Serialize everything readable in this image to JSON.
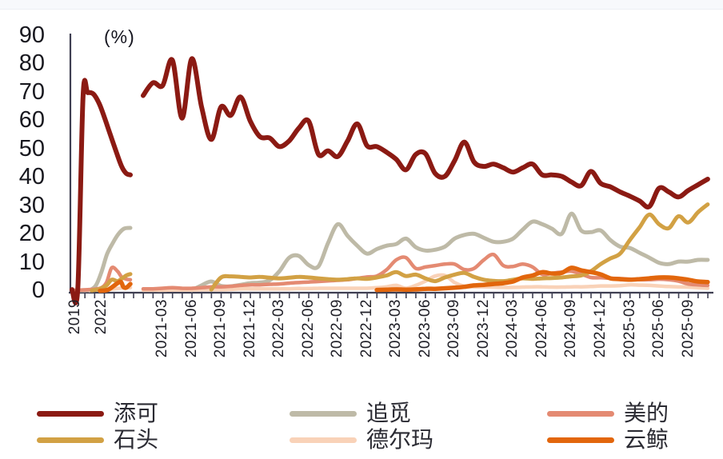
{
  "page": {
    "background": "#ffffff"
  },
  "chart_data": {
    "type": "line",
    "title": "",
    "unit_label": "(%)",
    "ylim": [
      0,
      90
    ],
    "yticks": [
      90,
      80,
      70,
      60,
      50,
      40,
      30,
      20,
      10,
      0
    ],
    "x_tick_labels": [
      "2019",
      "2022",
      "2021-03",
      "2021-06",
      "2021-09",
      "2021-12",
      "2022-03",
      "2022-06",
      "2022-09",
      "2022-12",
      "2023-03",
      "2023-06",
      "2023-09",
      "2023-12",
      "2024-03",
      "2024-06",
      "2024-09",
      "2024-12",
      "2025-03",
      "2025-06",
      "2025-09"
    ],
    "x_monthly_start": "2021-01",
    "x_monthly_end": "2025-11",
    "grid": false,
    "legend_position": "bottom",
    "axis_color": "#3f3f52",
    "text_color": "#202028",
    "note": "Two segments: an early 2019-2020 compressed segment on the left, then monthly data from 2021-01 onward. seg1_points are [fraction-of-segment, percent]; monthly values are percent, null = not present.",
    "series": [
      {
        "key": "tianke",
        "name": "添可",
        "color": "#8B1A13",
        "width": 6,
        "seg1_points": [
          [
            0,
            0.5
          ],
          [
            0.1,
            1
          ],
          [
            0.19,
            69
          ],
          [
            0.27,
            70
          ],
          [
            0.37,
            69.5
          ],
          [
            0.47,
            66
          ],
          [
            0.56,
            61
          ],
          [
            0.66,
            55
          ],
          [
            0.76,
            49
          ],
          [
            0.85,
            44
          ],
          [
            0.93,
            41.5
          ],
          [
            1,
            41
          ]
        ],
        "monthly": [
          69,
          73.5,
          72.5,
          81.5,
          61,
          82,
          65,
          53.5,
          65,
          62,
          68.5,
          60,
          54.5,
          54,
          51,
          53,
          57.5,
          60,
          48.3,
          49.5,
          47.5,
          53,
          59,
          51.3,
          51,
          49,
          46.5,
          42.8,
          48.2,
          48.5,
          41.5,
          40.5,
          46,
          52.6,
          45.5,
          44,
          44.8,
          43.5,
          42,
          43.5,
          44.8,
          41,
          41,
          40.5,
          38.5,
          37.2,
          42.2,
          38,
          36.8,
          35,
          33.5,
          31.8,
          29.8,
          36.3,
          35,
          33.2,
          35.5,
          37.5,
          39.5
        ]
      },
      {
        "key": "zhuimi",
        "name": "追觅",
        "color": "#BEBAA7",
        "width": 5,
        "seg1_points": [
          [
            0.3,
            0.2
          ],
          [
            0.41,
            2
          ],
          [
            0.51,
            7
          ],
          [
            0.6,
            13
          ],
          [
            0.7,
            17
          ],
          [
            0.79,
            20
          ],
          [
            0.89,
            22
          ],
          [
            1,
            22.3
          ]
        ],
        "monthly": [
          null,
          null,
          null,
          null,
          null,
          0.3,
          2,
          3.4,
          1.8,
          1.7,
          2.2,
          2.8,
          3,
          3.8,
          7,
          11.8,
          12.4,
          9.2,
          8.7,
          17,
          23.6,
          19.5,
          16,
          13.2,
          14.8,
          16,
          16.6,
          18.5,
          15.5,
          14.3,
          14.6,
          15.7,
          18.5,
          19.8,
          20.2,
          18.8,
          17.4,
          17.4,
          18.5,
          21.7,
          24.5,
          23.6,
          22,
          20.2,
          27.3,
          21.4,
          20.8,
          21.4,
          18,
          15.7,
          15.2,
          13.5,
          11.8,
          10,
          9.5,
          10.4,
          10.4,
          11,
          11
        ]
      },
      {
        "key": "meidi",
        "name": "美的",
        "color": "#E48A72",
        "width": 4.5,
        "seg1_points": [
          [
            0.05,
            0.3
          ],
          [
            0.27,
            0.5
          ],
          [
            0.48,
            1
          ],
          [
            0.59,
            3
          ],
          [
            0.68,
            8.2
          ],
          [
            0.78,
            7
          ],
          [
            0.85,
            5
          ],
          [
            0.93,
            4.2
          ],
          [
            1,
            4
          ]
        ],
        "monthly": [
          0.8,
          0.8,
          1,
          1.2,
          1,
          1,
          1.2,
          1.5,
          1.5,
          1.7,
          2,
          2.2,
          2.2,
          2.4,
          2.5,
          2.8,
          3,
          3.2,
          3.4,
          3.6,
          3.8,
          4,
          4.5,
          5,
          5.3,
          7.5,
          11,
          11.8,
          8,
          8.5,
          9,
          9.5,
          9.5,
          7.6,
          8,
          11,
          12.9,
          9,
          8.7,
          9.5,
          8.5,
          5.9,
          6.3,
          6.7,
          7,
          6,
          4.8,
          4.7,
          4.5,
          4.4,
          4.2,
          4,
          4,
          4.2,
          4,
          3.5,
          2.5,
          2.2,
          2
        ]
      },
      {
        "key": "shitou",
        "name": "石头",
        "color": "#D2A144",
        "width": 5,
        "seg1_points": [
          [
            0.34,
            0.2
          ],
          [
            0.48,
            0.8
          ],
          [
            0.59,
            2
          ],
          [
            0.68,
            4
          ],
          [
            0.78,
            3.5
          ],
          [
            0.86,
            4.5
          ],
          [
            0.93,
            5.5
          ],
          [
            1,
            6
          ]
        ],
        "monthly": [
          null,
          null,
          null,
          null,
          null,
          null,
          null,
          0.5,
          4.8,
          5.2,
          5,
          4.8,
          5,
          4.7,
          4.5,
          4.7,
          5,
          4.8,
          4.5,
          4.2,
          4,
          4.2,
          4.5,
          4.3,
          4.8,
          5.5,
          6.7,
          5.3,
          5.8,
          4.5,
          3.5,
          4.8,
          5.8,
          6.4,
          5,
          4,
          3.6,
          3.5,
          4,
          4.5,
          4.3,
          4.5,
          4.6,
          4.8,
          5.2,
          5.5,
          7,
          9.5,
          11.5,
          13.2,
          18,
          22.5,
          27,
          23.6,
          22.2,
          26.4,
          24.2,
          27.8,
          30.6
        ]
      },
      {
        "key": "delma",
        "name": "德尔玛",
        "color": "#F9D2B8",
        "width": 4.5,
        "seg1_points": [
          [
            0.14,
            0.2
          ],
          [
            0.55,
            0.5
          ],
          [
            0.82,
            1
          ],
          [
            1,
            1.2
          ]
        ],
        "monthly": [
          0.3,
          0.3,
          0.3,
          0.4,
          0.4,
          0.4,
          0.5,
          0.5,
          0.5,
          0.6,
          0.8,
          0.8,
          0.8,
          0.8,
          0.8,
          0.8,
          0.9,
          0.9,
          1,
          1,
          1,
          1,
          1,
          1,
          1.2,
          1.5,
          2,
          1,
          2,
          3.5,
          5.3,
          5.5,
          3,
          1.7,
          1.5,
          1.5,
          1.4,
          1.3,
          1.3,
          1.4,
          1.5,
          1.5,
          1.4,
          1.4,
          1.5,
          1.5,
          1.6,
          1.8,
          1.8,
          1.9,
          2.2,
          2.1,
          2,
          1.8,
          1.6,
          1.5,
          1.4,
          1.2,
          1
        ]
      },
      {
        "key": "yunjing",
        "name": "云鲸",
        "color": "#E2660C",
        "width": 5.5,
        "seg1_points": [
          [
            0.48,
            0.1
          ],
          [
            0.62,
            0.5
          ],
          [
            0.78,
            2.8
          ],
          [
            0.84,
            3.2
          ],
          [
            0.88,
            1.5
          ],
          [
            0.93,
            1.2
          ],
          [
            1,
            2.5
          ]
        ],
        "monthly": [
          null,
          null,
          null,
          null,
          null,
          null,
          null,
          null,
          null,
          null,
          null,
          null,
          null,
          null,
          null,
          null,
          null,
          null,
          null,
          null,
          null,
          null,
          null,
          null,
          0.4,
          0.5,
          0.6,
          0.5,
          0.6,
          0.8,
          0.8,
          1,
          1.2,
          1.5,
          2,
          2.2,
          2.5,
          2.8,
          3.4,
          4.8,
          5.5,
          6.7,
          6.2,
          6.4,
          8.2,
          7.3,
          6.7,
          5.9,
          4.5,
          4.2,
          4,
          4.2,
          4.5,
          4.8,
          4.8,
          4.5,
          4,
          3.4,
          3.2
        ]
      }
    ]
  }
}
